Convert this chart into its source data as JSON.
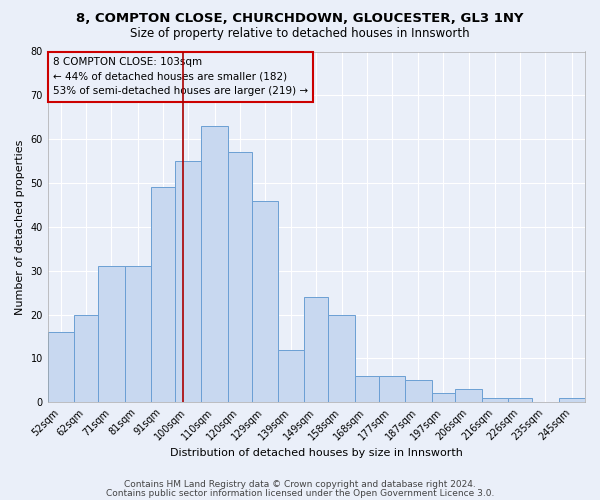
{
  "title1": "8, COMPTON CLOSE, CHURCHDOWN, GLOUCESTER, GL3 1NY",
  "title2": "Size of property relative to detached houses in Innsworth",
  "xlabel": "Distribution of detached houses by size in Innsworth",
  "ylabel": "Number of detached properties",
  "bin_labels": [
    "52sqm",
    "62sqm",
    "71sqm",
    "81sqm",
    "91sqm",
    "100sqm",
    "110sqm",
    "120sqm",
    "129sqm",
    "139sqm",
    "149sqm",
    "158sqm",
    "168sqm",
    "177sqm",
    "187sqm",
    "197sqm",
    "206sqm",
    "216sqm",
    "226sqm",
    "235sqm",
    "245sqm"
  ],
  "bin_edges": [
    52,
    62,
    71,
    81,
    91,
    100,
    110,
    120,
    129,
    139,
    149,
    158,
    168,
    177,
    187,
    197,
    206,
    216,
    226,
    235,
    245,
    255
  ],
  "bar_heights": [
    16,
    20,
    31,
    31,
    49,
    55,
    63,
    57,
    46,
    12,
    24,
    20,
    6,
    6,
    5,
    2,
    3,
    1,
    1,
    0,
    1
  ],
  "bar_fill_color": "#c8d8f0",
  "bar_edge_color": "#6b9fd4",
  "vline_x": 103,
  "vline_color": "#aa0000",
  "annotation_text": "8 COMPTON CLOSE: 103sqm\n← 44% of detached houses are smaller (182)\n53% of semi-detached houses are larger (219) →",
  "annotation_box_color": "#cc0000",
  "ylim": [
    0,
    80
  ],
  "yticks": [
    0,
    10,
    20,
    30,
    40,
    50,
    60,
    70,
    80
  ],
  "footer1": "Contains HM Land Registry data © Crown copyright and database right 2024.",
  "footer2": "Contains public sector information licensed under the Open Government Licence 3.0.",
  "bg_color": "#eaeff9",
  "grid_color": "#ffffff",
  "title1_fontsize": 9.5,
  "title2_fontsize": 8.5,
  "axis_label_fontsize": 8,
  "tick_fontsize": 7,
  "annotation_fontsize": 7.5,
  "footer_fontsize": 6.5
}
